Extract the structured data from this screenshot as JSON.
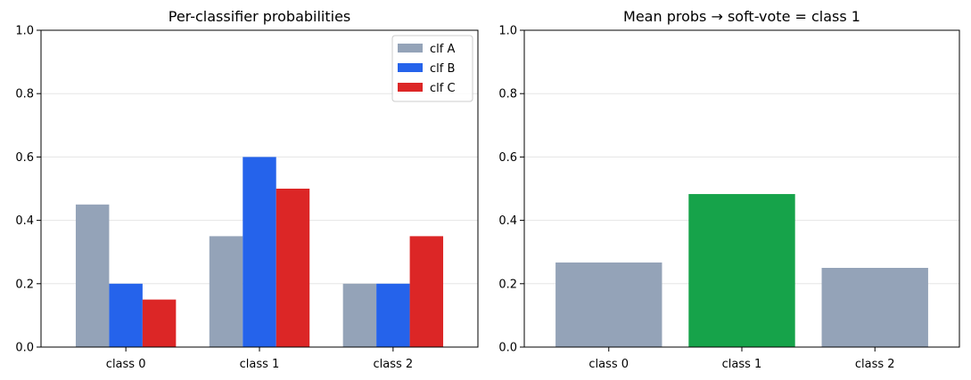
{
  "chart_data": [
    {
      "type": "bar",
      "title": "Per-classifier probabilities",
      "xlabel": "",
      "ylabel": "",
      "categories": [
        "class 0",
        "class 1",
        "class 2"
      ],
      "ylim": [
        0,
        1.0
      ],
      "yticks": [
        "0.0",
        "0.2",
        "0.4",
        "0.6",
        "0.8",
        "1.0"
      ],
      "grid": "horizontal",
      "legend": "top-right",
      "series": [
        {
          "name": "clf A",
          "color": "#94a3b8",
          "values": [
            0.45,
            0.35,
            0.2
          ]
        },
        {
          "name": "clf B",
          "color": "#2563eb",
          "values": [
            0.2,
            0.6,
            0.2
          ]
        },
        {
          "name": "clf C",
          "color": "#dc2626",
          "values": [
            0.15,
            0.5,
            0.35
          ]
        }
      ]
    },
    {
      "type": "bar",
      "title": "Mean probs → soft-vote = class 1",
      "xlabel": "",
      "ylabel": "",
      "categories": [
        "class 0",
        "class 1",
        "class 2"
      ],
      "ylim": [
        0,
        1.0
      ],
      "yticks": [
        "0.0",
        "0.2",
        "0.4",
        "0.6",
        "0.8",
        "1.0"
      ],
      "grid": "horizontal",
      "values": [
        0.267,
        0.483,
        0.25
      ],
      "colors": [
        "#94a3b8",
        "#16a34a",
        "#94a3b8"
      ]
    }
  ]
}
